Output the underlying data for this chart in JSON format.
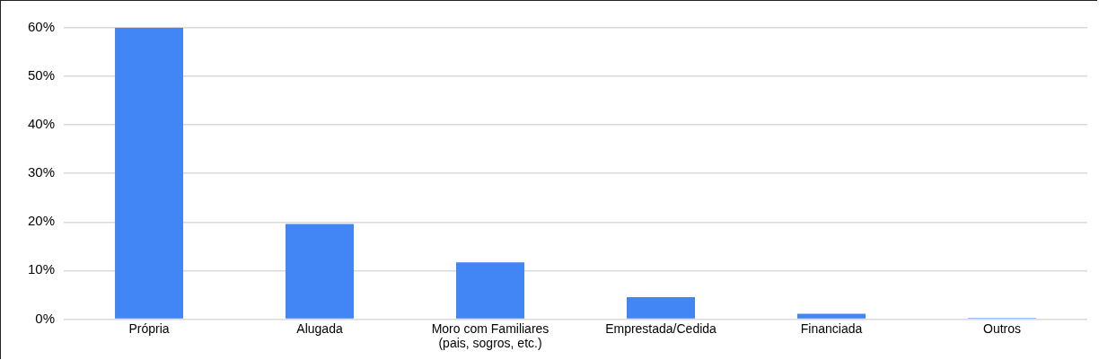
{
  "chart_data": {
    "type": "bar",
    "categories": [
      "Própria",
      "Alugada",
      "Moro com Familiares (pais, sogros, etc.)",
      "Emprestada/Cedida",
      "Financiada",
      "Outros"
    ],
    "values": [
      60,
      19.6,
      11.7,
      4.5,
      1.1,
      0.2
    ],
    "color": "#4285f4",
    "ylim": [
      0,
      60
    ],
    "yticks": [
      {
        "value": 0,
        "label": "0%"
      },
      {
        "value": 10,
        "label": "10%"
      },
      {
        "value": 20,
        "label": "20%"
      },
      {
        "value": 30,
        "label": "30%"
      },
      {
        "value": 40,
        "label": "40%"
      },
      {
        "value": 50,
        "label": "50%"
      },
      {
        "value": 60,
        "label": "60%"
      }
    ],
    "grid": "y",
    "legend": false
  }
}
